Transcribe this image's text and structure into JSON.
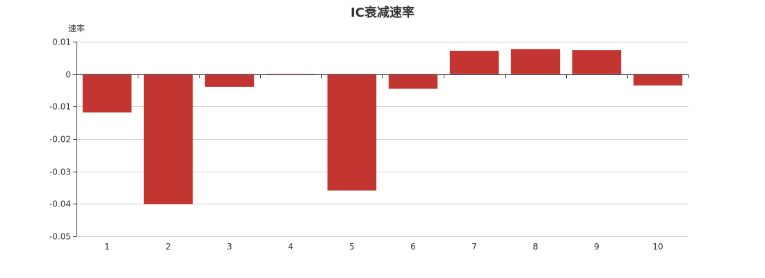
{
  "chart_data": {
    "type": "bar",
    "title": "IC衰减速率",
    "ylabel": "速率",
    "xlabel": "",
    "categories": [
      "1",
      "2",
      "3",
      "4",
      "5",
      "6",
      "7",
      "8",
      "9",
      "10"
    ],
    "values": [
      -0.0118,
      -0.0401,
      -0.0039,
      -0.0003,
      -0.0359,
      -0.0045,
      0.0072,
      0.0077,
      0.0074,
      -0.0035
    ],
    "ylim": [
      -0.05,
      0.01
    ],
    "yticks": [
      "0.01",
      "0",
      "-0.01",
      "-0.02",
      "-0.03",
      "-0.04",
      "-0.05"
    ],
    "ytick_values": [
      0.01,
      0,
      -0.01,
      -0.02,
      -0.03,
      -0.04,
      -0.05
    ],
    "bar_color": "#c23531",
    "grid": true,
    "legend": "none"
  }
}
